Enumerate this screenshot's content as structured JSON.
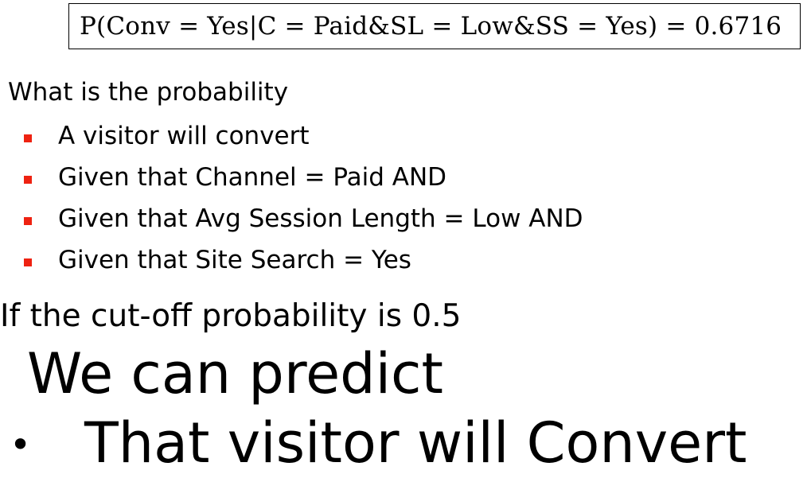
{
  "formula": {
    "text": "P(Conv = Yes|C = Paid&SL = Low&SS = Yes) = 0.6716"
  },
  "question": {
    "text": "What is the probability"
  },
  "bullets": {
    "marker_color": "#ee2211",
    "items": [
      "A visitor will convert",
      "Given that Channel = Paid AND",
      "Given that Avg Session Length = Low AND",
      "Given that Site Search = Yes"
    ]
  },
  "cutoff": {
    "text": "If the cut-off probability is 0.5"
  },
  "prediction": {
    "heading": "We can predict",
    "bullet_glyph": "•",
    "conclusion": "That visitor will Convert"
  }
}
